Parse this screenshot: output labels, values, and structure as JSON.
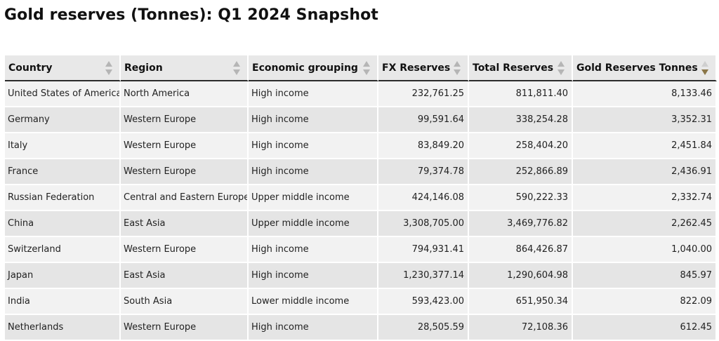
{
  "title": "Gold reserves (Tonnes): Q1 2024 Snapshot",
  "table": {
    "columns": [
      {
        "label": "Country",
        "sort": "none"
      },
      {
        "label": "Region",
        "sort": "none"
      },
      {
        "label": "Economic grouping",
        "sort": "none"
      },
      {
        "label": "FX Reserves",
        "sort": "none"
      },
      {
        "label": "Total Reserves",
        "sort": "none"
      },
      {
        "label": "Gold Reserves Tonnes",
        "sort": "descending"
      }
    ],
    "rows": [
      {
        "country": "United States of America",
        "region": "North America",
        "grouping": "High income",
        "fx": "232,761.25",
        "total": "811,811.40",
        "gold": "8,133.46"
      },
      {
        "country": "Germany",
        "region": "Western Europe",
        "grouping": "High income",
        "fx": "99,591.64",
        "total": "338,254.28",
        "gold": "3,352.31"
      },
      {
        "country": "Italy",
        "region": "Western Europe",
        "grouping": "High income",
        "fx": "83,849.20",
        "total": "258,404.20",
        "gold": "2,451.84"
      },
      {
        "country": "France",
        "region": "Western Europe",
        "grouping": "High income",
        "fx": "79,374.78",
        "total": "252,866.89",
        "gold": "2,436.91"
      },
      {
        "country": "Russian Federation",
        "region": "Central and Eastern Europe",
        "grouping": "Upper middle income",
        "fx": "424,146.08",
        "total": "590,222.33",
        "gold": "2,332.74"
      },
      {
        "country": "China",
        "region": "East Asia",
        "grouping": "Upper middle income",
        "fx": "3,308,705.00",
        "total": "3,469,776.82",
        "gold": "2,262.45"
      },
      {
        "country": "Switzerland",
        "region": "Western Europe",
        "grouping": "High income",
        "fx": "794,931.41",
        "total": "864,426.87",
        "gold": "1,040.00"
      },
      {
        "country": "Japan",
        "region": "East Asia",
        "grouping": "High income",
        "fx": "1,230,377.14",
        "total": "1,290,604.98",
        "gold": "845.97"
      },
      {
        "country": "India",
        "region": "South Asia",
        "grouping": "Lower middle income",
        "fx": "593,423.00",
        "total": "651,950.34",
        "gold": "822.09"
      },
      {
        "country": "Netherlands",
        "region": "Western Europe",
        "grouping": "High income",
        "fx": "28,505.59",
        "total": "72,108.36",
        "gold": "612.45"
      }
    ]
  },
  "colors": {
    "header_bg": "#e8e8e8",
    "row_odd": "#f2f2f2",
    "row_even": "#e5e5e5",
    "sort_active": "#8a7648",
    "sort_inactive": "#b5b5b5"
  }
}
